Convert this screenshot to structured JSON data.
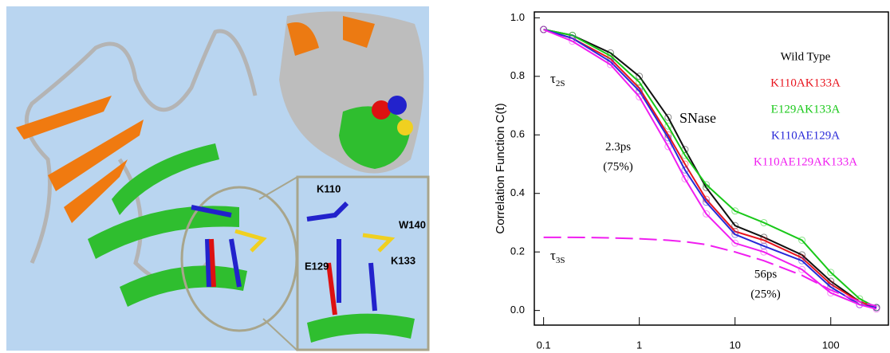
{
  "figure": {
    "inset_labels": [
      "K110",
      "W140",
      "E129",
      "K133"
    ]
  },
  "chart_data": {
    "type": "line",
    "x_scale": "log",
    "y_label": "Correlation Function C(t)",
    "annotations": [
      "SNase",
      "2.3ps",
      "(75%)",
      "56ps",
      "(25%)"
    ],
    "tau_labels": [
      {
        "base": "τ",
        "sub": "2S"
      },
      {
        "base": "τ",
        "sub": "3S"
      }
    ],
    "x": [
      0.1,
      0.2,
      0.5,
      1,
      2,
      3,
      5,
      10,
      20,
      50,
      100,
      200,
      300
    ],
    "series": [
      {
        "name": "Wild Type",
        "color": "#111111",
        "values": [
          0.96,
          0.94,
          0.88,
          0.8,
          0.66,
          0.55,
          0.42,
          0.29,
          0.25,
          0.19,
          0.1,
          0.03,
          0.01
        ]
      },
      {
        "name": "K110AK133A",
        "color": "#e8141e",
        "values": [
          0.96,
          0.93,
          0.86,
          0.76,
          0.6,
          0.5,
          0.38,
          0.27,
          0.24,
          0.18,
          0.09,
          0.03,
          0.01
        ]
      },
      {
        "name": "E129AK133A",
        "color": "#19c819",
        "values": [
          0.96,
          0.94,
          0.87,
          0.78,
          0.63,
          0.53,
          0.43,
          0.34,
          0.3,
          0.24,
          0.13,
          0.04,
          0.01
        ]
      },
      {
        "name": "K110AE129A",
        "color": "#2828d8",
        "values": [
          0.96,
          0.93,
          0.85,
          0.75,
          0.59,
          0.48,
          0.37,
          0.26,
          0.22,
          0.17,
          0.08,
          0.02,
          0.01
        ]
      },
      {
        "name": "K110AE129AK133A",
        "color": "#f01ef0",
        "values": [
          0.96,
          0.92,
          0.84,
          0.73,
          0.56,
          0.45,
          0.33,
          0.23,
          0.2,
          0.14,
          0.06,
          0.02,
          0.005
        ]
      }
    ],
    "fit": {
      "color": "#f01ef0",
      "dashed": true,
      "values": [
        0.25,
        0.25,
        0.248,
        0.245,
        0.24,
        0.235,
        0.225,
        0.2,
        0.17,
        0.12,
        0.07,
        0.03,
        0.015
      ]
    },
    "xlim": [
      0.08,
      400
    ],
    "ylim": [
      -0.05,
      1.02
    ],
    "xticks": [
      0.1,
      1,
      10,
      100
    ],
    "yticks": [
      {
        "value": 0,
        "label": "0.0"
      },
      0.2,
      0.4,
      0.6,
      0.8,
      {
        "value": 1,
        "label": "1.0"
      }
    ]
  }
}
